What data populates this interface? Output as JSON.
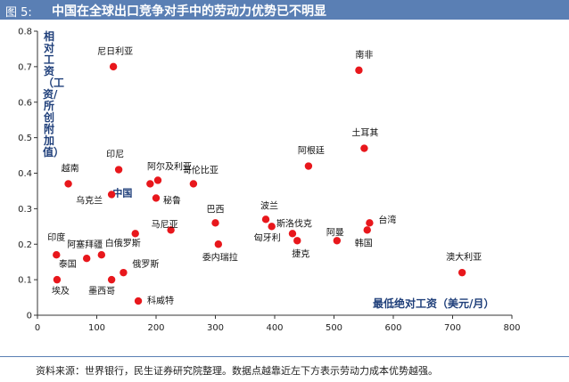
{
  "header": {
    "figure_no": "图 5:",
    "title": "中国在全球出口竞争对手中的劳动力优势已不明显"
  },
  "source_note": "资料来源：世界银行，民生证券研究院整理。数据点越靠近左下方表示劳动力成本优势越强。",
  "chart_data": {
    "type": "scatter",
    "xlabel": "最低绝对工资（美元/月）",
    "ylabel": "相对工资（工资/所创附加值）",
    "xlim": [
      0,
      800
    ],
    "ylim": [
      0,
      0.8
    ],
    "xticks": [
      "0",
      "100",
      "200",
      "300",
      "400",
      "500",
      "600",
      "700",
      "800"
    ],
    "yticks": [
      "0",
      "0.1",
      "0.2",
      "0.3",
      "0.4",
      "0.5",
      "0.6",
      "0.7",
      "0.8"
    ],
    "point_color": "#e8171c",
    "highlight_color": "#1f3f7a",
    "grid": false,
    "points": [
      {
        "label": "尼日利亚",
        "x": 128,
        "y": 0.7
      },
      {
        "label": "南非",
        "x": 542,
        "y": 0.69
      },
      {
        "label": "土耳其",
        "x": 551,
        "y": 0.47
      },
      {
        "label": "阿根廷",
        "x": 457,
        "y": 0.42
      },
      {
        "label": "印尼",
        "x": 137,
        "y": 0.41
      },
      {
        "label": "越南",
        "x": 52,
        "y": 0.37
      },
      {
        "label": "阿尔及利亚",
        "x": 203,
        "y": 0.38
      },
      {
        "label": "中国",
        "x": 190,
        "y": 0.37,
        "highlight": true
      },
      {
        "label": "哥伦比亚",
        "x": 263,
        "y": 0.37
      },
      {
        "label": "乌克兰",
        "x": 125,
        "y": 0.34
      },
      {
        "label": "秘鲁",
        "x": 200,
        "y": 0.33
      },
      {
        "label": "巴西",
        "x": 300,
        "y": 0.26
      },
      {
        "label": "白俄罗斯",
        "x": 165,
        "y": 0.23
      },
      {
        "label": "马尼亚",
        "x": 225,
        "y": 0.24
      },
      {
        "label": "波兰",
        "x": 385,
        "y": 0.27
      },
      {
        "label": "匈牙利",
        "x": 395,
        "y": 0.25
      },
      {
        "label": "斯洛伐克",
        "x": 430,
        "y": 0.23
      },
      {
        "label": "捷克",
        "x": 438,
        "y": 0.21
      },
      {
        "label": "阿曼",
        "x": 505,
        "y": 0.21
      },
      {
        "label": "台湾",
        "x": 560,
        "y": 0.26
      },
      {
        "label": "韩国",
        "x": 556,
        "y": 0.24
      },
      {
        "label": "委内瑞拉",
        "x": 305,
        "y": 0.2
      },
      {
        "label": "印度",
        "x": 32,
        "y": 0.17
      },
      {
        "label": "阿塞拜疆",
        "x": 83,
        "y": 0.16
      },
      {
        "label": "泰国",
        "x": 108,
        "y": 0.17
      },
      {
        "label": "俄罗斯",
        "x": 145,
        "y": 0.12
      },
      {
        "label": "埃及",
        "x": 33,
        "y": 0.1
      },
      {
        "label": "墨西哥",
        "x": 125,
        "y": 0.1
      },
      {
        "label": "科威特",
        "x": 170,
        "y": 0.04
      },
      {
        "label": "澳大利亚",
        "x": 716,
        "y": 0.12
      }
    ]
  }
}
